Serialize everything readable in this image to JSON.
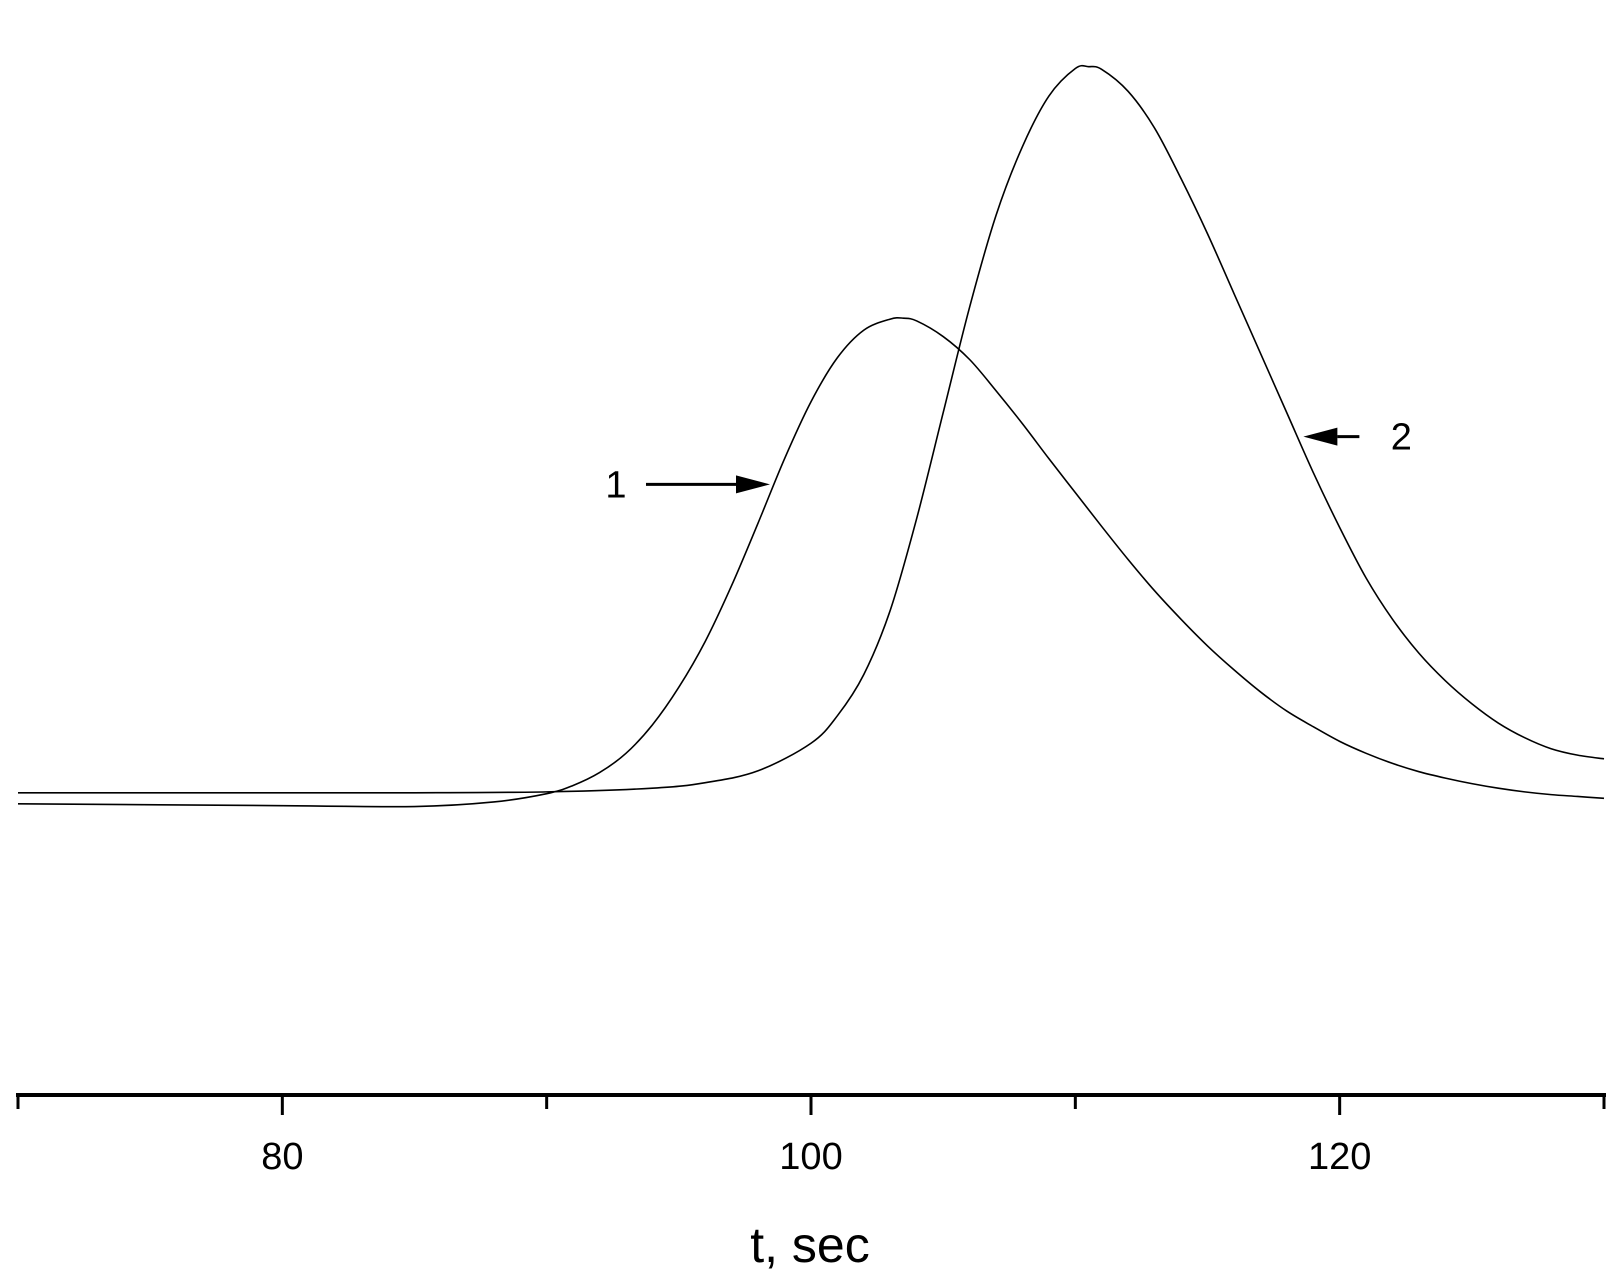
{
  "chart_data": {
    "type": "line",
    "xlabel": "t, sec",
    "ylabel": "",
    "xlim": [
      70,
      130
    ],
    "ylim": [
      0,
      100
    ],
    "x_ticks_major": [
      80,
      100,
      120
    ],
    "x_ticks_minor": [
      70,
      90,
      110,
      130
    ],
    "tick_labels": [
      "80",
      "100",
      "120"
    ],
    "grid": false,
    "legend": "none",
    "series": [
      {
        "label_text": "1",
        "x": [
          70,
          80,
          85,
          88,
          90,
          91,
          92,
          93,
          94,
          95,
          96,
          97,
          98,
          99,
          100,
          101,
          102,
          103,
          103.5,
          104,
          105,
          106,
          107,
          108,
          109,
          110,
          111,
          112,
          113,
          114,
          115,
          116,
          117,
          118,
          119,
          120,
          121,
          122,
          123,
          124,
          125,
          126,
          127,
          128,
          129,
          130
        ],
        "y": [
          14.4,
          14.2,
          14.1,
          14.6,
          15.5,
          16.4,
          17.8,
          19.9,
          23.0,
          27.1,
          32.1,
          38.2,
          45.0,
          52.0,
          58.2,
          63.0,
          66.0,
          67.2,
          67.3,
          67.0,
          65.3,
          62.8,
          59.4,
          55.8,
          52.0,
          48.3,
          44.6,
          41.0,
          37.6,
          34.5,
          31.6,
          29.0,
          26.6,
          24.5,
          22.8,
          21.2,
          19.9,
          18.8,
          17.9,
          17.2,
          16.6,
          16.1,
          15.7,
          15.4,
          15.2,
          15.0
        ]
      },
      {
        "label_text": "2",
        "x": [
          70,
          80,
          85,
          90,
          94,
          96,
          98,
          100,
          101,
          102,
          103,
          104,
          105,
          106,
          107,
          108,
          109,
          110,
          110.5,
          111,
          112,
          113,
          114,
          115,
          116,
          117,
          118,
          119,
          120,
          121,
          122,
          123,
          124,
          125,
          126,
          127,
          128,
          129,
          130
        ],
        "y": [
          15.6,
          15.6,
          15.6,
          15.7,
          16.1,
          16.7,
          18.0,
          21.0,
          24.0,
          28.5,
          35.5,
          45.5,
          57.0,
          68.5,
          78.5,
          86.0,
          91.5,
          94.5,
          94.7,
          94.4,
          92.0,
          88.0,
          82.5,
          76.5,
          70.0,
          63.5,
          57.0,
          50.5,
          44.5,
          39.0,
          34.5,
          30.8,
          27.8,
          25.3,
          23.2,
          21.6,
          20.4,
          19.7,
          19.3
        ]
      }
    ],
    "annotations": [
      {
        "text": "1",
        "target_series": 0,
        "target_x": 98.6,
        "arrow_direction": "right"
      },
      {
        "text": "2",
        "target_series": 1,
        "target_x": 118.4,
        "arrow_direction": "left"
      }
    ]
  }
}
